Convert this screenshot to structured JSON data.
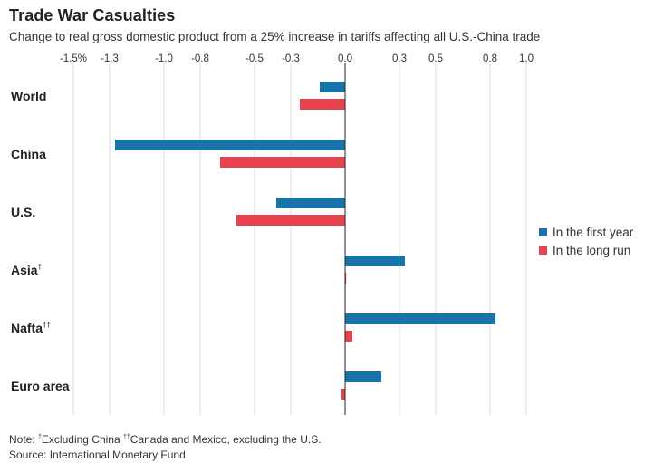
{
  "header": {
    "title": "Trade War Casualties",
    "subtitle": "Change to real gross domestic product from a 25% increase in tariffs affecting all U.S.-China trade"
  },
  "footer": {
    "note_prefix": "Note: ",
    "note_mark1": "†",
    "note_text1": "Excluding China ",
    "note_mark2": "††",
    "note_text2": "Canada and Mexico, excluding the U.S.",
    "source": "Source: International Monetary Fund"
  },
  "chart_data": {
    "type": "bar",
    "orientation": "horizontal",
    "categories": [
      "World",
      "China",
      "U.S.",
      "Asia",
      "Nafta",
      "Euro area"
    ],
    "category_marks": [
      "",
      "",
      "",
      "†",
      "††",
      ""
    ],
    "series": [
      {
        "name": "In the first year",
        "color": "#1a73a8",
        "values": [
          -0.14,
          -1.27,
          -0.38,
          0.33,
          0.83,
          0.2
        ]
      },
      {
        "name": "In the long run",
        "color": "#e8424f",
        "values": [
          -0.25,
          -0.69,
          -0.6,
          0.0,
          0.04,
          -0.02
        ]
      }
    ],
    "x_ticks": [
      -1.5,
      -1.3,
      -1.0,
      -0.8,
      -0.5,
      -0.3,
      0.0,
      0.3,
      0.5,
      0.8,
      1.0
    ],
    "x_tick_labels": [
      "-1.5%",
      "-1.3",
      "-1.0",
      "-0.8",
      "-0.5",
      "-0.3",
      "0.0",
      "0.3",
      "0.5",
      "0.8",
      "1.0"
    ],
    "xlim": [
      -1.5,
      1.0
    ],
    "grid": true,
    "legend_position": "right"
  }
}
